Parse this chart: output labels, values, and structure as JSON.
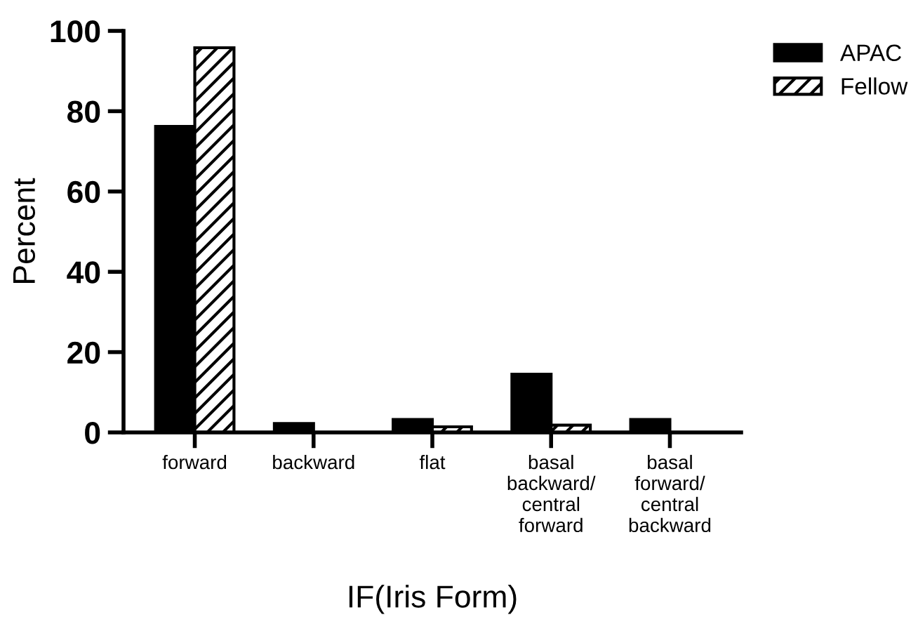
{
  "chart_data": {
    "type": "bar",
    "xlabel": "IF(Iris Form)",
    "ylabel": "Percent",
    "categories": [
      "forward",
      "backward",
      "flat",
      "basal\nbackward/\ncentral\nforward",
      "basal\nforward/\ncentral\nbackward"
    ],
    "series": [
      {
        "name": "APAC",
        "color": "#000000",
        "values": [
          76.2,
          2.2,
          3.2,
          14.5,
          3.2
        ]
      },
      {
        "name": "Fellow",
        "color": "#000000",
        "values": [
          95.8,
          0,
          1.4,
          1.8,
          0
        ]
      }
    ],
    "ylim": [
      0,
      100
    ],
    "yticks": [
      0,
      20,
      40,
      60,
      80,
      100
    ],
    "grid": false,
    "legend": "top right"
  }
}
